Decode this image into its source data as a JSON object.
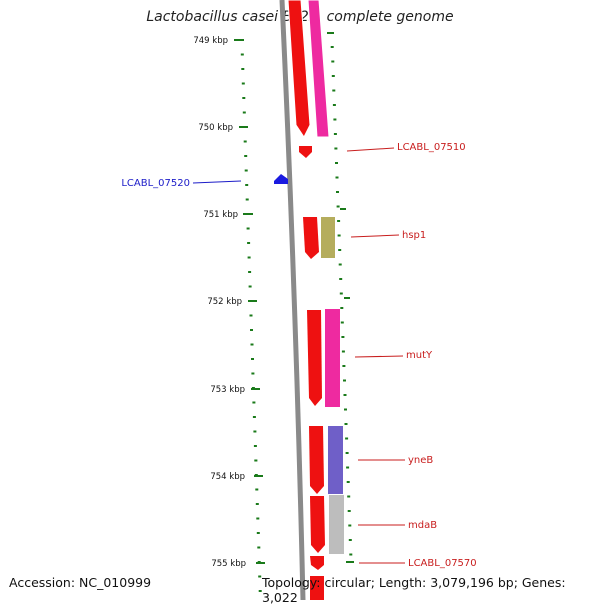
{
  "title": "Lactobacillus casei BL23, complete genome",
  "accession": "Accession: NC_010999",
  "summary": "Topology: circular; Length: 3,079,196 bp; Genes: 3,022",
  "colors": {
    "backbone": "#8a8a8a",
    "tick": "#1a7a1a",
    "cds": "#ee1111",
    "pink": "#ee2aa0",
    "olive": "#b5ad5d",
    "purple": "#6f5fc8",
    "grey": "#bdbdbd",
    "label_forward": "#c81e1e",
    "label_reverse": "#1c1cc8",
    "reverse_gene": "#1a1ae0"
  },
  "ruler": {
    "unit": "kbp",
    "labels": [
      "749 kbp",
      "750 kbp",
      "751 kbp",
      "752 kbp",
      "753 kbp",
      "754 kbp",
      "755 kbp"
    ],
    "kbp_values": [
      749,
      750,
      751,
      752,
      753,
      754,
      755
    ]
  },
  "gene_labels": [
    {
      "text": "LCABL_07510",
      "strand": "forward"
    },
    {
      "text": "LCABL_07520",
      "strand": "reverse"
    },
    {
      "text": "hsp1",
      "strand": "forward"
    },
    {
      "text": "mutY",
      "strand": "forward"
    },
    {
      "text": "yneB",
      "strand": "forward"
    },
    {
      "text": "mdaB",
      "strand": "forward"
    },
    {
      "text": "LCABL_07570",
      "strand": "forward"
    }
  ]
}
